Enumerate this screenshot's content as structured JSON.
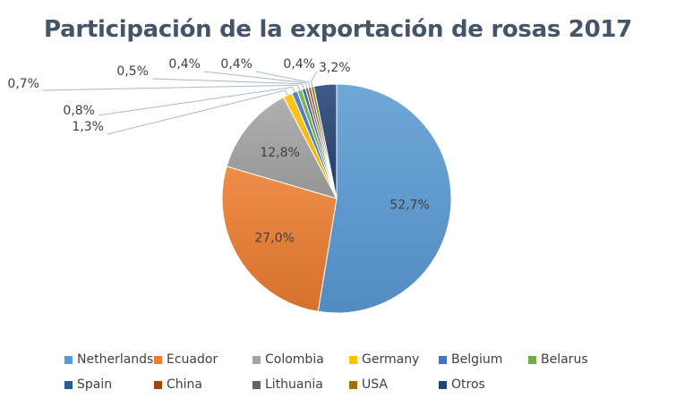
{
  "chart_data": {
    "type": "pie",
    "title": "Participación de la exportación de rosas 2017",
    "categories": [
      "Netherlands",
      "Ecuador",
      "Colombia",
      "Germany",
      "Belgium",
      "Belarus",
      "Spain",
      "China",
      "Lithuania",
      "USA",
      "Otros"
    ],
    "values": [
      52.7,
      27.0,
      12.8,
      1.3,
      0.8,
      0.7,
      0.5,
      0.4,
      0.4,
      0.4,
      3.2
    ],
    "data_labels": [
      "52,7%",
      "27,0%",
      "12,8%",
      "1,3%",
      "0,8%",
      "0,7%",
      "0,5%",
      "0,4%",
      "0,4%",
      "0,4%",
      "3,2%"
    ],
    "colors": [
      "#5b9bd5",
      "#ed7d31",
      "#a5a5a5",
      "#ffc000",
      "#4472c4",
      "#70ad47",
      "#255e91",
      "#9e480e",
      "#636363",
      "#997300",
      "#264478"
    ],
    "legend_position": "bottom"
  }
}
